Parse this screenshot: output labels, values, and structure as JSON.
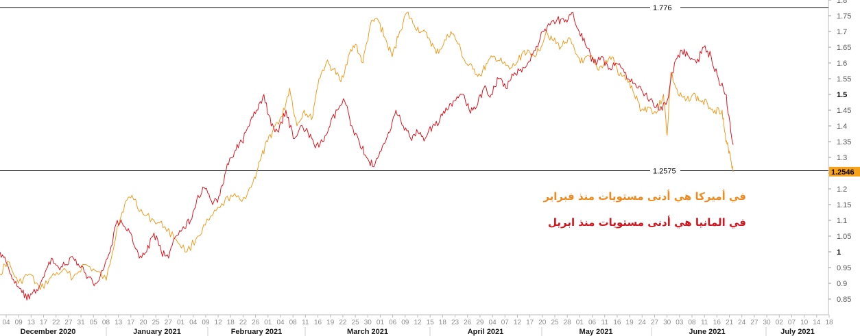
{
  "chart_data": {
    "type": "line",
    "y_axis": {
      "position": "right",
      "range": [
        0.8,
        1.8
      ],
      "ticks": [
        "0.85",
        "0.9",
        "0.95",
        "1",
        "1.05",
        "1.1",
        "1.15",
        "1.2",
        "1.25",
        "1.3",
        "1.35",
        "1.4",
        "1.45",
        "1.5",
        "1.55",
        "1.6",
        "1.65",
        "1.7",
        "1.75",
        "1.8"
      ],
      "major_ticks": [
        "1",
        "1.5"
      ]
    },
    "x_axis": {
      "day_ticks": [
        "04",
        "09",
        "13",
        "17",
        "22",
        "27",
        "31",
        "05",
        "08",
        "13",
        "17",
        "20",
        "25",
        "27",
        "01",
        "04",
        "09",
        "12",
        "18",
        "22",
        "26",
        "01",
        "04",
        "08",
        "11",
        "16",
        "19",
        "22",
        "25",
        "30",
        "01",
        "06",
        "09",
        "12",
        "15",
        "18",
        "23",
        "26",
        "29",
        "04",
        "07",
        "12",
        "17",
        "20",
        "25",
        "28",
        "01",
        "06",
        "11",
        "16",
        "19",
        "24",
        "27",
        "30",
        "03",
        "08",
        "11",
        "16",
        "21",
        "24",
        "27",
        "30",
        "02",
        "07",
        "10",
        "14",
        "18"
      ],
      "months": [
        "December 2020",
        "January 2021",
        "February 2021",
        "March 2021",
        "April 2021",
        "May 2021",
        "June 2021",
        "July 2021"
      ],
      "x_range_days": [
        0,
        226
      ]
    },
    "horizontal_lines": [
      {
        "label": "1.776",
        "value": 1.776,
        "color": "#000000"
      },
      {
        "label": "1.2575",
        "value": 1.2575,
        "color": "#000000"
      }
    ],
    "last_value_badge": {
      "label": "1.2546",
      "value": 1.2546,
      "color": "#f7a21b"
    },
    "series": [
      {
        "color": "#f29b1f",
        "points": [
          [
            0,
            0.93
          ],
          [
            2,
            0.97
          ],
          [
            5,
            0.9
          ],
          [
            8,
            0.93
          ],
          [
            11,
            0.88
          ],
          [
            14,
            0.92
          ],
          [
            17,
            0.94
          ],
          [
            20,
            0.92
          ],
          [
            23,
            0.96
          ],
          [
            26,
            0.94
          ],
          [
            29,
            0.91
          ],
          [
            32,
            1.08
          ],
          [
            34,
            1.15
          ],
          [
            36,
            1.18
          ],
          [
            39,
            1.12
          ],
          [
            42,
            1.1
          ],
          [
            45,
            1.08
          ],
          [
            48,
            1.04
          ],
          [
            51,
            1.0
          ],
          [
            54,
            1.05
          ],
          [
            57,
            1.1
          ],
          [
            60,
            1.14
          ],
          [
            63,
            1.18
          ],
          [
            66,
            1.16
          ],
          [
            69,
            1.22
          ],
          [
            71,
            1.29
          ],
          [
            73,
            1.35
          ],
          [
            75,
            1.4
          ],
          [
            77,
            1.43
          ],
          [
            79,
            1.52
          ],
          [
            81,
            1.4
          ],
          [
            83,
            1.45
          ],
          [
            85,
            1.42
          ],
          [
            87,
            1.55
          ],
          [
            89,
            1.6
          ],
          [
            91,
            1.58
          ],
          [
            93,
            1.54
          ],
          [
            95,
            1.62
          ],
          [
            97,
            1.66
          ],
          [
            99,
            1.6
          ],
          [
            101,
            1.72
          ],
          [
            103,
            1.74
          ],
          [
            105,
            1.68
          ],
          [
            107,
            1.62
          ],
          [
            109,
            1.7
          ],
          [
            111,
            1.76
          ],
          [
            113,
            1.72
          ],
          [
            115,
            1.7
          ],
          [
            117,
            1.68
          ],
          [
            119,
            1.63
          ],
          [
            121,
            1.66
          ],
          [
            123,
            1.7
          ],
          [
            125,
            1.66
          ],
          [
            127,
            1.6
          ],
          [
            129,
            1.58
          ],
          [
            131,
            1.56
          ],
          [
            133,
            1.6
          ],
          [
            135,
            1.62
          ],
          [
            137,
            1.6
          ],
          [
            139,
            1.58
          ],
          [
            141,
            1.6
          ],
          [
            143,
            1.64
          ],
          [
            145,
            1.62
          ],
          [
            147,
            1.64
          ],
          [
            149,
            1.7
          ],
          [
            151,
            1.67
          ],
          [
            153,
            1.65
          ],
          [
            155,
            1.68
          ],
          [
            157,
            1.63
          ],
          [
            159,
            1.6
          ],
          [
            161,
            1.62
          ],
          [
            163,
            1.58
          ],
          [
            165,
            1.6
          ],
          [
            167,
            1.62
          ],
          [
            169,
            1.56
          ],
          [
            171,
            1.55
          ],
          [
            173,
            1.5
          ],
          [
            175,
            1.45
          ],
          [
            177,
            1.46
          ],
          [
            179,
            1.44
          ],
          [
            181,
            1.5
          ],
          [
            182,
            1.37
          ],
          [
            183,
            1.57
          ],
          [
            185,
            1.5
          ],
          [
            187,
            1.48
          ],
          [
            189,
            1.5
          ],
          [
            191,
            1.48
          ],
          [
            193,
            1.47
          ],
          [
            195,
            1.45
          ],
          [
            197,
            1.45
          ],
          [
            198,
            1.35
          ],
          [
            199,
            1.32
          ],
          [
            200,
            1.2546
          ]
        ]
      },
      {
        "color": "#dc1620",
        "points": [
          [
            0,
            1.0
          ],
          [
            2,
            0.96
          ],
          [
            4,
            0.9
          ],
          [
            6,
            0.87
          ],
          [
            8,
            0.85
          ],
          [
            10,
            0.88
          ],
          [
            12,
            0.92
          ],
          [
            14,
            0.98
          ],
          [
            16,
            0.95
          ],
          [
            18,
            0.96
          ],
          [
            20,
            0.98
          ],
          [
            22,
            0.95
          ],
          [
            24,
            0.92
          ],
          [
            26,
            0.9
          ],
          [
            28,
            0.94
          ],
          [
            30,
            1.0
          ],
          [
            32,
            1.1
          ],
          [
            34,
            1.08
          ],
          [
            36,
            1.05
          ],
          [
            38,
            0.98
          ],
          [
            40,
            1.0
          ],
          [
            42,
            1.06
          ],
          [
            44,
            1.0
          ],
          [
            46,
            0.98
          ],
          [
            48,
            1.05
          ],
          [
            50,
            1.08
          ],
          [
            52,
            1.1
          ],
          [
            54,
            1.18
          ],
          [
            56,
            1.2
          ],
          [
            58,
            1.15
          ],
          [
            60,
            1.18
          ],
          [
            62,
            1.28
          ],
          [
            64,
            1.32
          ],
          [
            66,
            1.35
          ],
          [
            68,
            1.4
          ],
          [
            70,
            1.45
          ],
          [
            72,
            1.5
          ],
          [
            74,
            1.4
          ],
          [
            76,
            1.38
          ],
          [
            78,
            1.45
          ],
          [
            80,
            1.36
          ],
          [
            82,
            1.4
          ],
          [
            84,
            1.38
          ],
          [
            86,
            1.33
          ],
          [
            88,
            1.35
          ],
          [
            90,
            1.4
          ],
          [
            92,
            1.45
          ],
          [
            94,
            1.48
          ],
          [
            96,
            1.4
          ],
          [
            98,
            1.35
          ],
          [
            100,
            1.3
          ],
          [
            102,
            1.27
          ],
          [
            104,
            1.32
          ],
          [
            106,
            1.38
          ],
          [
            108,
            1.45
          ],
          [
            110,
            1.4
          ],
          [
            112,
            1.36
          ],
          [
            114,
            1.38
          ],
          [
            116,
            1.36
          ],
          [
            118,
            1.4
          ],
          [
            120,
            1.42
          ],
          [
            122,
            1.45
          ],
          [
            124,
            1.48
          ],
          [
            126,
            1.5
          ],
          [
            128,
            1.45
          ],
          [
            130,
            1.46
          ],
          [
            132,
            1.52
          ],
          [
            134,
            1.5
          ],
          [
            136,
            1.55
          ],
          [
            138,
            1.52
          ],
          [
            140,
            1.56
          ],
          [
            142,
            1.58
          ],
          [
            144,
            1.6
          ],
          [
            146,
            1.64
          ],
          [
            148,
            1.7
          ],
          [
            150,
            1.72
          ],
          [
            152,
            1.74
          ],
          [
            154,
            1.73
          ],
          [
            156,
            1.76
          ],
          [
            158,
            1.7
          ],
          [
            160,
            1.65
          ],
          [
            162,
            1.6
          ],
          [
            164,
            1.62
          ],
          [
            166,
            1.58
          ],
          [
            168,
            1.6
          ],
          [
            170,
            1.58
          ],
          [
            172,
            1.54
          ],
          [
            174,
            1.52
          ],
          [
            176,
            1.5
          ],
          [
            178,
            1.48
          ],
          [
            180,
            1.45
          ],
          [
            182,
            1.48
          ],
          [
            184,
            1.6
          ],
          [
            186,
            1.64
          ],
          [
            188,
            1.62
          ],
          [
            190,
            1.6
          ],
          [
            192,
            1.65
          ],
          [
            194,
            1.62
          ],
          [
            196,
            1.55
          ],
          [
            198,
            1.5
          ],
          [
            199,
            1.42
          ],
          [
            200,
            1.34
          ]
        ]
      }
    ]
  },
  "annotations": {
    "us": "في أميركا هي أدنى مستويات منذ فبراير",
    "de": "في المانيا هي أدنى مستويات منذ ابريل"
  }
}
